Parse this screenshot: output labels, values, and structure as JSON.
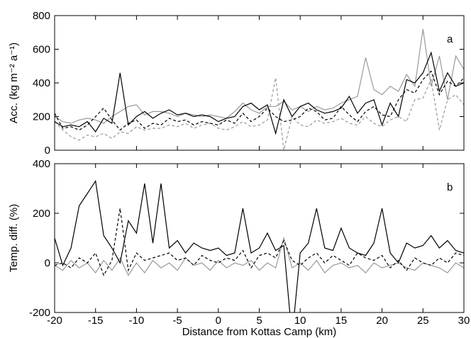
{
  "chart_data": [
    {
      "type": "line",
      "panel_label": "a",
      "ylabel": "Acc. (kg m⁻² a⁻¹)",
      "x": [
        -20,
        -19,
        -18,
        -17,
        -16,
        -15,
        -14,
        -13,
        -12,
        -11,
        -10,
        -9,
        -8,
        -7,
        -6,
        -5,
        -4,
        -3,
        -2,
        -1,
        0,
        1,
        2,
        3,
        4,
        5,
        6,
        7,
        8,
        9,
        10,
        11,
        12,
        13,
        14,
        15,
        16,
        17,
        18,
        19,
        20,
        21,
        22,
        23,
        24,
        25,
        26,
        27,
        28,
        29,
        30
      ],
      "xlim": [
        -20,
        30
      ],
      "xticks": [
        -20,
        -15,
        -10,
        -5,
        0,
        5,
        10,
        15,
        20,
        25,
        30
      ],
      "ylim": [
        0,
        800
      ],
      "yticks": [
        0,
        200,
        400,
        600,
        800
      ],
      "series": [
        {
          "color": "#999999",
          "dash": false,
          "values": [
            200,
            170,
            160,
            180,
            190,
            180,
            160,
            200,
            230,
            260,
            270,
            210,
            230,
            230,
            220,
            200,
            220,
            210,
            200,
            210,
            200,
            190,
            230,
            280,
            240,
            220,
            260,
            260,
            290,
            240,
            260,
            230,
            260,
            240,
            250,
            280,
            300,
            320,
            550,
            360,
            330,
            380,
            350,
            450,
            380,
            720,
            380,
            560,
            300,
            560,
            480
          ]
        },
        {
          "color": "#999999",
          "dash": true,
          "values": [
            170,
            120,
            80,
            60,
            90,
            80,
            100,
            70,
            110,
            100,
            140,
            120,
            130,
            130,
            150,
            140,
            160,
            130,
            150,
            160,
            130,
            120,
            140,
            170,
            140,
            150,
            180,
            430,
            0,
            200,
            150,
            140,
            180,
            160,
            170,
            190,
            160,
            150,
            200,
            160,
            140,
            180,
            200,
            170,
            300,
            310,
            420,
            120,
            300,
            330,
            270
          ]
        },
        {
          "color": "#000000",
          "dash": true,
          "values": [
            220,
            130,
            140,
            120,
            150,
            200,
            250,
            180,
            120,
            160,
            180,
            130,
            160,
            150,
            190,
            170,
            180,
            150,
            170,
            160,
            150,
            180,
            160,
            220,
            170,
            200,
            250,
            200,
            170,
            180,
            200,
            250,
            230,
            180,
            190,
            260,
            210,
            170,
            230,
            260,
            210,
            200,
            300,
            360,
            340,
            420,
            470,
            330,
            410,
            380,
            430
          ]
        },
        {
          "color": "#000000",
          "dash": false,
          "values": [
            170,
            140,
            150,
            140,
            170,
            110,
            190,
            160,
            460,
            150,
            200,
            230,
            190,
            220,
            240,
            210,
            220,
            200,
            210,
            200,
            170,
            190,
            200,
            260,
            280,
            240,
            270,
            100,
            300,
            200,
            260,
            280,
            240,
            220,
            230,
            250,
            320,
            220,
            280,
            300,
            150,
            280,
            200,
            420,
            400,
            460,
            580,
            350,
            460,
            380,
            400
          ]
        }
      ]
    },
    {
      "type": "line",
      "panel_label": "b",
      "ylabel": "Temp. diff. (%)",
      "xlabel": "Distance from Kottas Camp (km)",
      "x": [
        -20,
        -19,
        -18,
        -17,
        -16,
        -15,
        -14,
        -13,
        -12,
        -11,
        -10,
        -9,
        -8,
        -7,
        -6,
        -5,
        -4,
        -3,
        -2,
        -1,
        0,
        1,
        2,
        3,
        4,
        5,
        6,
        7,
        8,
        9,
        10,
        11,
        12,
        13,
        14,
        15,
        16,
        17,
        18,
        19,
        20,
        21,
        22,
        23,
        24,
        25,
        26,
        27,
        28,
        29,
        30
      ],
      "xlim": [
        -20,
        30
      ],
      "xticks": [
        -20,
        -15,
        -10,
        -5,
        0,
        5,
        10,
        15,
        20,
        25,
        30
      ],
      "ylim": [
        -200,
        400
      ],
      "yticks": [
        -200,
        0,
        200,
        400
      ],
      "series": [
        {
          "color": "#999999",
          "dash": false,
          "values": [
            -10,
            -30,
            10,
            -20,
            0,
            -40,
            10,
            -30,
            20,
            -50,
            0,
            -40,
            10,
            -20,
            0,
            -30,
            20,
            -10,
            0,
            -30,
            10,
            -20,
            0,
            -10,
            10,
            -30,
            0,
            -20,
            100,
            -20,
            0,
            -30,
            10,
            -40,
            -10,
            0,
            -20,
            -10,
            -40,
            0,
            -20,
            -10,
            0,
            -20,
            -30,
            0,
            -10,
            -20,
            -40,
            0,
            -20
          ]
        },
        {
          "color": "#000000",
          "dash": true,
          "values": [
            -10,
            0,
            -20,
            20,
            0,
            40,
            -50,
            10,
            220,
            -30,
            40,
            10,
            20,
            30,
            40,
            10,
            20,
            -10,
            30,
            10,
            0,
            20,
            10,
            50,
            -20,
            30,
            40,
            20,
            90,
            10,
            -10,
            20,
            40,
            0,
            30,
            10,
            -10,
            40,
            20,
            10,
            30,
            -20,
            10,
            -30,
            20,
            0,
            -10,
            20,
            0,
            40,
            30
          ]
        },
        {
          "color": "#000000",
          "dash": false,
          "values": [
            100,
            -10,
            60,
            230,
            280,
            330,
            110,
            60,
            0,
            170,
            120,
            320,
            80,
            320,
            60,
            90,
            40,
            80,
            60,
            50,
            60,
            30,
            40,
            220,
            40,
            60,
            120,
            50,
            70,
            -300,
            40,
            80,
            220,
            60,
            50,
            140,
            60,
            40,
            30,
            80,
            220,
            40,
            0,
            80,
            60,
            70,
            110,
            60,
            90,
            50,
            40
          ]
        }
      ]
    }
  ]
}
